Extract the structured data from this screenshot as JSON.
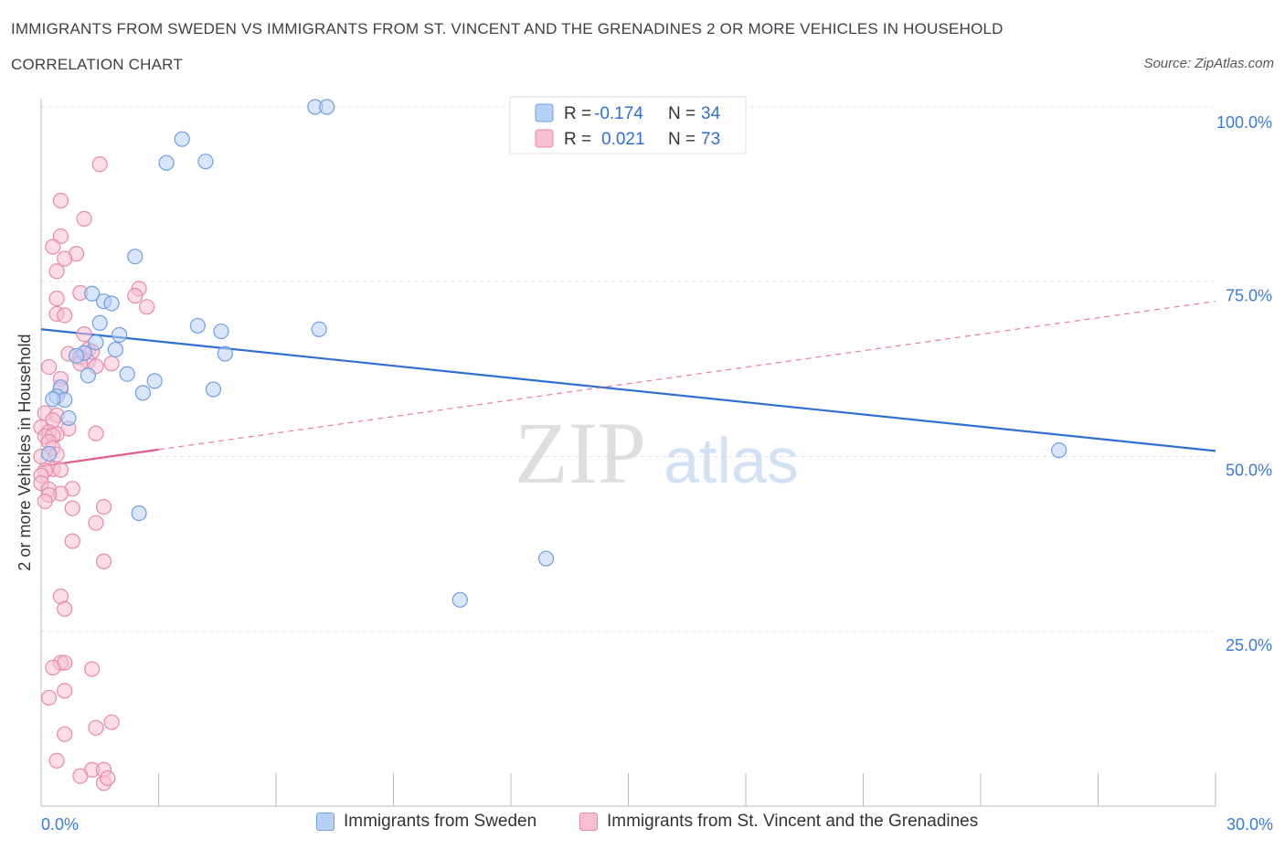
{
  "title": "IMMIGRANTS FROM SWEDEN VS IMMIGRANTS FROM ST. VINCENT AND THE GRENADINES 2 OR MORE VEHICLES IN HOUSEHOLD",
  "subtitle": "CORRELATION CHART",
  "source": "Source: ZipAtlas.com",
  "watermark": {
    "zip": "ZIP",
    "atlas": "atlas"
  },
  "colors": {
    "blue": "#2f6fd1",
    "blue_fill": "#b8d0f5",
    "pink": "#e35a8c",
    "pink_fill": "#f7bfd3",
    "axis_text": "#3a7bd5"
  },
  "legend_top": [
    {
      "r_label": "R =",
      "r_value": "-0.174",
      "n_label": "N =",
      "n_value": "34"
    },
    {
      "r_label": "R =",
      "r_value": "0.021",
      "n_label": "N =",
      "n_value": "73"
    }
  ],
  "chart_data": {
    "type": "scatter",
    "xlabel": "",
    "ylabel": "2 or more Vehicles in Household",
    "xlim": [
      0,
      30
    ],
    "ylim": [
      0,
      100
    ],
    "x_tick_labels": [
      "0.0%",
      "30.0%"
    ],
    "y_ticks": [
      25,
      50,
      75,
      100
    ],
    "y_tick_labels": [
      "25.0%",
      "50.0%",
      "75.0%",
      "100.0%"
    ],
    "grid": true,
    "legend": "bottom",
    "series": [
      {
        "name": "Immigrants from Sweden",
        "color": "#2f6fd1",
        "trend": {
          "x": [
            0,
            30
          ],
          "y": [
            68.2,
            50.8
          ],
          "style": "solid"
        },
        "points": [
          [
            7.0,
            100.0
          ],
          [
            7.3,
            100.0
          ],
          [
            3.6,
            95.4
          ],
          [
            3.2,
            92.0
          ],
          [
            4.2,
            92.2
          ],
          [
            2.4,
            78.6
          ],
          [
            1.3,
            73.3
          ],
          [
            1.6,
            72.2
          ],
          [
            1.8,
            71.9
          ],
          [
            1.5,
            69.1
          ],
          [
            4.0,
            68.7
          ],
          [
            4.6,
            67.9
          ],
          [
            7.1,
            68.2
          ],
          [
            2.0,
            67.4
          ],
          [
            1.4,
            66.3
          ],
          [
            1.9,
            65.3
          ],
          [
            1.1,
            64.8
          ],
          [
            4.7,
            64.7
          ],
          [
            0.9,
            64.4
          ],
          [
            1.2,
            61.6
          ],
          [
            2.2,
            61.8
          ],
          [
            2.9,
            60.8
          ],
          [
            0.5,
            59.9
          ],
          [
            2.6,
            59.1
          ],
          [
            4.4,
            59.6
          ],
          [
            0.4,
            58.6
          ],
          [
            0.6,
            58.1
          ],
          [
            0.3,
            58.2
          ],
          [
            0.7,
            55.5
          ],
          [
            26.0,
            50.9
          ],
          [
            2.5,
            41.9
          ],
          [
            12.9,
            35.4
          ],
          [
            10.7,
            29.5
          ],
          [
            0.2,
            50.4
          ]
        ]
      },
      {
        "name": "Immigrants from St. Vincent and the Grenadines",
        "color": "#e35a8c",
        "trend": {
          "x": [
            0,
            3.0,
            30
          ],
          "y": [
            48.6,
            51.0,
            72.2
          ],
          "style": "solid-then-dashed"
        },
        "points": [
          [
            1.5,
            91.8
          ],
          [
            0.5,
            86.6
          ],
          [
            1.1,
            84.0
          ],
          [
            0.5,
            81.5
          ],
          [
            0.3,
            80.0
          ],
          [
            0.9,
            79.0
          ],
          [
            0.6,
            78.3
          ],
          [
            0.4,
            76.5
          ],
          [
            2.5,
            74.0
          ],
          [
            2.4,
            73.0
          ],
          [
            1.0,
            73.4
          ],
          [
            0.4,
            72.6
          ],
          [
            2.7,
            71.4
          ],
          [
            0.4,
            70.4
          ],
          [
            0.6,
            70.2
          ],
          [
            1.1,
            67.5
          ],
          [
            1.2,
            65.3
          ],
          [
            1.3,
            65.0
          ],
          [
            0.7,
            64.7
          ],
          [
            1.0,
            64.2
          ],
          [
            1.2,
            63.6
          ],
          [
            1.8,
            63.3
          ],
          [
            1.4,
            62.9
          ],
          [
            0.2,
            62.8
          ],
          [
            1.0,
            63.3
          ],
          [
            0.5,
            61.1
          ],
          [
            0.5,
            59.6
          ],
          [
            0.1,
            56.2
          ],
          [
            0.4,
            55.9
          ],
          [
            0.3,
            55.2
          ],
          [
            0.0,
            54.2
          ],
          [
            0.7,
            54.0
          ],
          [
            0.2,
            53.5
          ],
          [
            0.4,
            53.2
          ],
          [
            1.4,
            53.3
          ],
          [
            0.1,
            52.9
          ],
          [
            0.3,
            53.0
          ],
          [
            0.2,
            52.1
          ],
          [
            0.3,
            51.2
          ],
          [
            0.4,
            50.3
          ],
          [
            0.0,
            50.0
          ],
          [
            0.3,
            48.2
          ],
          [
            0.5,
            48.1
          ],
          [
            0.1,
            48.0
          ],
          [
            0.0,
            47.3
          ],
          [
            0.0,
            46.2
          ],
          [
            0.2,
            45.3
          ],
          [
            0.8,
            45.4
          ],
          [
            0.5,
            44.7
          ],
          [
            0.2,
            44.5
          ],
          [
            0.1,
            43.6
          ],
          [
            1.6,
            42.8
          ],
          [
            0.8,
            42.6
          ],
          [
            1.4,
            40.5
          ],
          [
            0.8,
            37.9
          ],
          [
            1.6,
            35.0
          ],
          [
            0.5,
            30.0
          ],
          [
            0.6,
            28.2
          ],
          [
            0.5,
            20.5
          ],
          [
            0.6,
            20.5
          ],
          [
            0.3,
            19.8
          ],
          [
            1.3,
            19.6
          ],
          [
            0.6,
            16.5
          ],
          [
            0.2,
            15.5
          ],
          [
            1.8,
            12.0
          ],
          [
            1.4,
            11.2
          ],
          [
            0.6,
            10.3
          ],
          [
            0.4,
            6.5
          ],
          [
            1.3,
            5.2
          ],
          [
            1.6,
            5.2
          ],
          [
            1.0,
            4.3
          ],
          [
            1.6,
            3.3
          ],
          [
            1.7,
            4.0
          ]
        ]
      }
    ]
  }
}
